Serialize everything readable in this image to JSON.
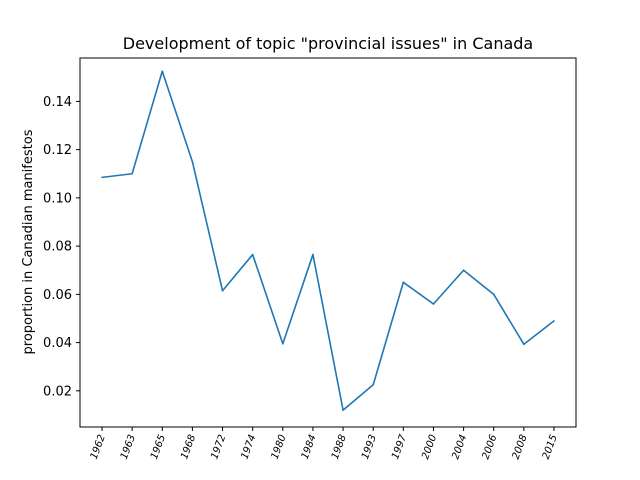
{
  "chart_data": {
    "type": "line",
    "title": "Development of topic \"provincial issues\" in Canada",
    "xlabel": "",
    "ylabel": "proportion in Canadian manifestos",
    "categories": [
      "1962",
      "1963",
      "1965",
      "1968",
      "1972",
      "1974",
      "1980",
      "1984",
      "1988",
      "1993",
      "1997",
      "2000",
      "2004",
      "2006",
      "2008",
      "2015"
    ],
    "series": [
      {
        "color": "#1f77b4",
        "values": [
          0.1085,
          0.11,
          0.1525,
          0.115,
          0.0615,
          0.0765,
          0.0395,
          0.0765,
          0.012,
          0.0225,
          0.065,
          0.056,
          0.07,
          0.06,
          0.0393,
          0.049
        ]
      }
    ],
    "ylim": [
      0.005,
      0.158
    ],
    "yticks": [
      "0.02",
      "0.04",
      "0.06",
      "0.08",
      "0.10",
      "0.12",
      "0.14"
    ],
    "grid": false,
    "legend": "none"
  }
}
